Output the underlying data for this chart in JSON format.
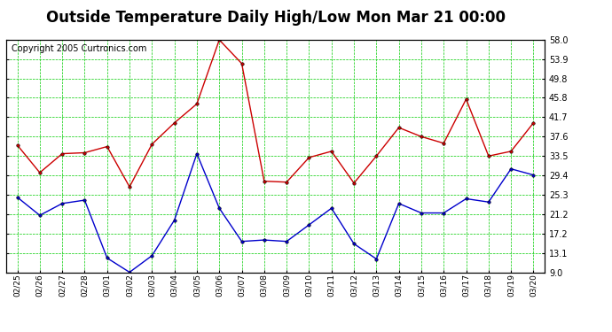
{
  "title": "Outside Temperature Daily High/Low Mon Mar 21 00:00",
  "copyright": "Copyright 2005 Curtronics.com",
  "x_labels": [
    "02/25",
    "02/26",
    "02/27",
    "02/28",
    "03/01",
    "03/02",
    "03/03",
    "03/04",
    "03/05",
    "03/06",
    "03/07",
    "03/08",
    "03/09",
    "03/10",
    "03/11",
    "03/12",
    "03/13",
    "03/14",
    "03/15",
    "03/16",
    "03/17",
    "03/18",
    "03/19",
    "03/20"
  ],
  "high_temps": [
    35.8,
    30.0,
    34.0,
    34.2,
    35.5,
    27.0,
    36.0,
    40.5,
    44.5,
    58.0,
    53.0,
    28.2,
    28.0,
    33.2,
    34.5,
    27.8,
    33.5,
    39.5,
    37.6,
    36.2,
    45.5,
    33.5,
    34.5,
    40.5
  ],
  "low_temps": [
    24.8,
    21.0,
    23.5,
    24.2,
    12.0,
    9.0,
    12.5,
    20.0,
    34.0,
    22.5,
    15.5,
    15.8,
    15.5,
    19.0,
    22.5,
    15.0,
    11.8,
    23.5,
    21.5,
    21.5,
    24.5,
    23.8,
    30.8,
    29.5
  ],
  "y_ticks": [
    9.0,
    13.1,
    17.2,
    21.2,
    25.3,
    29.4,
    33.5,
    37.6,
    41.7,
    45.8,
    49.8,
    53.9,
    58.0
  ],
  "ylim": [
    9.0,
    58.0
  ],
  "high_color": "#cc0000",
  "low_color": "#0000cc",
  "grid_color": "#00cc00",
  "bg_color": "#ffffff",
  "title_fontsize": 12,
  "copyright_fontsize": 7
}
